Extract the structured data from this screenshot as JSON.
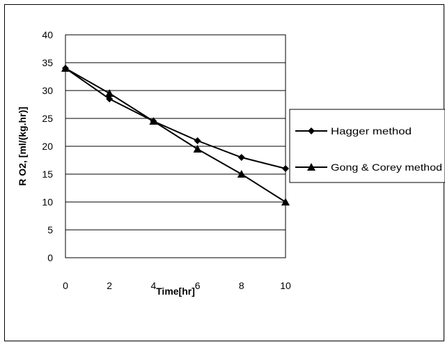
{
  "chart_data": {
    "type": "line",
    "title": "",
    "xlabel": "Time[hr]",
    "ylabel": "R O2, [ml/(kg.hr)]",
    "xlim": [
      0,
      10
    ],
    "ylim": [
      0,
      40
    ],
    "x_ticks": [
      "0",
      "2",
      "4",
      "6",
      "8",
      "10"
    ],
    "y_ticks": [
      "0",
      "5",
      "10",
      "15",
      "20",
      "25",
      "30",
      "35",
      "40"
    ],
    "grid": "horizontal",
    "legend_position": "right",
    "series": [
      {
        "name": "Hagger method",
        "marker": "diamond",
        "color": "#000000",
        "x": [
          0,
          2,
          4,
          6,
          8,
          10
        ],
        "y": [
          34,
          28.5,
          24.5,
          21,
          18,
          16
        ]
      },
      {
        "name": "Gong & Corey method",
        "marker": "triangle",
        "color": "#000000",
        "x": [
          0,
          2,
          4,
          6,
          8,
          10
        ],
        "y": [
          34,
          29.5,
          24.5,
          19.5,
          15,
          10
        ]
      }
    ]
  }
}
